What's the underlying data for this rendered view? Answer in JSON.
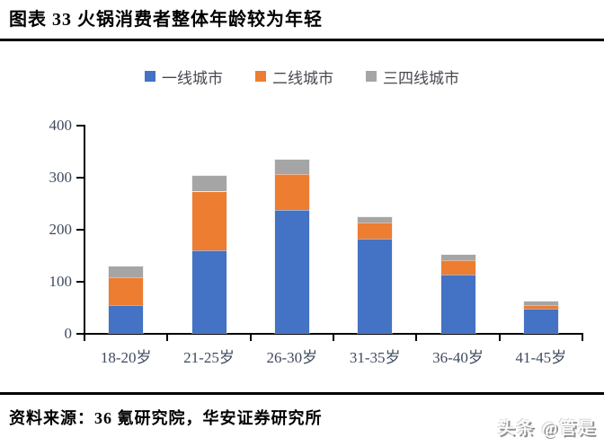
{
  "header": {
    "title": "图表 33 火锅消费者整体年龄较为年轻"
  },
  "footer": {
    "source": "资料来源：36 氪研究院，华安证券研究所",
    "watermark": "头条 @管是"
  },
  "colors": {
    "tier1_blue": "#4472C4",
    "tier2_orange": "#ED7D31",
    "tier34_gray": "#A5A5A5",
    "axis": "#000000",
    "axis_label": "#3E4A5E"
  },
  "chart_data": {
    "type": "bar",
    "stacked": true,
    "title": "",
    "xlabel": "",
    "ylabel": "",
    "categories": [
      "18-20岁",
      "21-25岁",
      "26-30岁",
      "31-35岁",
      "36-40岁",
      "41-45岁"
    ],
    "series": [
      {
        "name": "一线城市",
        "color": "#4472C4",
        "values": [
          55,
          160,
          238,
          182,
          113,
          48
        ]
      },
      {
        "name": "二线城市",
        "color": "#ED7D31",
        "values": [
          53,
          113,
          68,
          31,
          27,
          7
        ]
      },
      {
        "name": "三四线城市",
        "color": "#A5A5A5",
        "values": [
          21,
          30,
          28,
          11,
          12,
          6
        ]
      }
    ],
    "totals": [
      129,
      303,
      334,
      224,
      152,
      61
    ],
    "ylim": [
      0,
      400
    ],
    "yticks": [
      0,
      100,
      200,
      300,
      400
    ],
    "grid": false,
    "legend_position": "top"
  }
}
